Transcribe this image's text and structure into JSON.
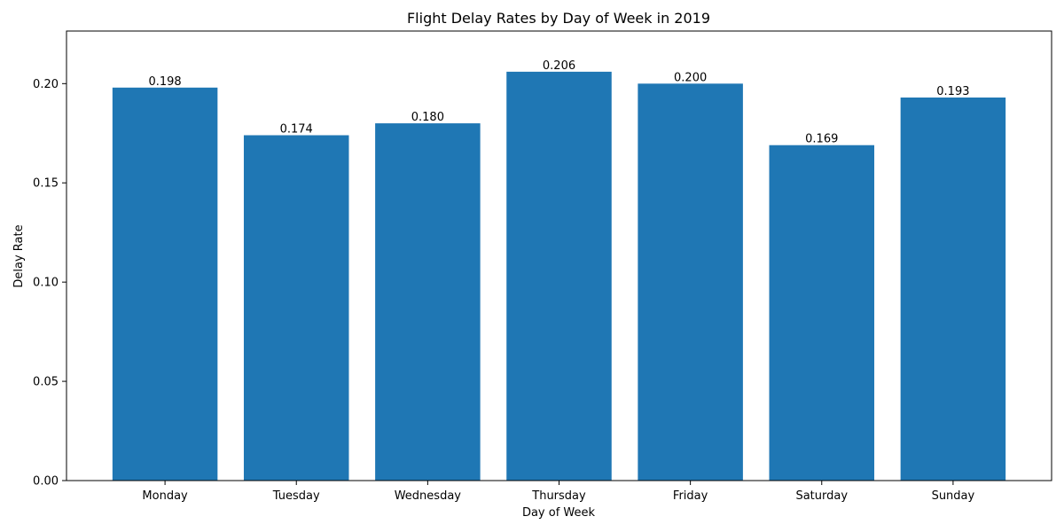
{
  "chart_data": {
    "type": "bar",
    "title": "Flight Delay Rates by Day of Week in 2019",
    "xlabel": "Day of Week",
    "ylabel": "Delay Rate",
    "categories": [
      "Monday",
      "Tuesday",
      "Wednesday",
      "Thursday",
      "Friday",
      "Saturday",
      "Sunday"
    ],
    "values": [
      0.198,
      0.174,
      0.18,
      0.206,
      0.2,
      0.169,
      0.193
    ],
    "value_labels": [
      "0.198",
      "0.174",
      "0.180",
      "0.206",
      "0.200",
      "0.169",
      "0.193"
    ],
    "ylim": [
      0,
      0.2265
    ],
    "yticks": [
      0.0,
      0.05,
      0.1,
      0.15,
      0.2
    ],
    "ytick_labels": [
      "0.00",
      "0.05",
      "0.10",
      "0.15",
      "0.20"
    ],
    "bar_color": "#1f77b4",
    "grid": false,
    "legend": "none"
  }
}
